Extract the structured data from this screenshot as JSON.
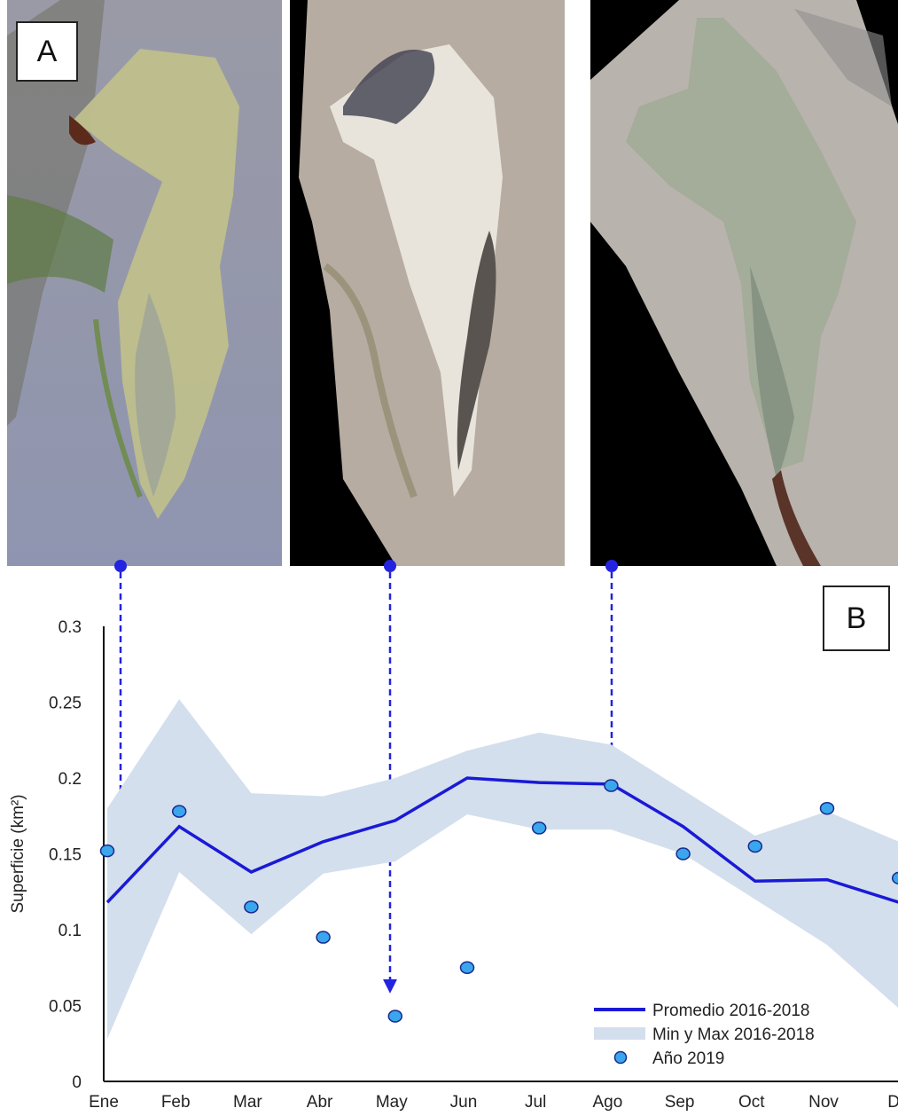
{
  "panels": {
    "a_label": "A",
    "b_label": "B"
  },
  "colors": {
    "mean_line": "#1a1ad6",
    "band_fill": "#d3dfed",
    "point_fill": "#3aa6ee",
    "point_stroke": "#1a2a8a",
    "arrow": "#2323e0"
  },
  "chart_data": {
    "type": "line",
    "ylabel": "Superficie (km²)",
    "ylim": [
      0,
      0.3
    ],
    "yticks": [
      "0",
      "0.05",
      "0.1",
      "0.15",
      "0.2",
      "0.25",
      "0.3"
    ],
    "categories": [
      "Ene",
      "Feb",
      "Mar",
      "Abr",
      "May",
      "Jun",
      "Jul",
      "Ago",
      "Sep",
      "Oct",
      "Nov",
      "Di"
    ],
    "series": [
      {
        "name": "Promedio 2016-2018",
        "kind": "line",
        "values": [
          0.118,
          0.168,
          0.138,
          0.158,
          0.172,
          0.2,
          0.197,
          0.196,
          0.168,
          0.132,
          0.133,
          0.118
        ]
      },
      {
        "name": "Min y Max 2016-2018",
        "kind": "band",
        "min": [
          0.028,
          0.138,
          0.097,
          0.137,
          0.145,
          0.176,
          0.166,
          0.166,
          0.15,
          0.12,
          0.09,
          0.048
        ],
        "max": [
          0.18,
          0.252,
          0.19,
          0.188,
          0.2,
          0.218,
          0.23,
          0.222,
          0.192,
          0.162,
          0.178,
          0.158
        ]
      },
      {
        "name": "Año 2019",
        "kind": "scatter",
        "values": [
          0.152,
          0.178,
          0.115,
          0.095,
          0.043,
          0.075,
          0.167,
          0.195,
          0.15,
          0.155,
          0.18,
          0.134
        ]
      }
    ],
    "annotations": [
      {
        "from_panel": "A1",
        "to_month": "Ene",
        "to_value": 0.165
      },
      {
        "from_panel": "A2",
        "to_month": "May",
        "to_value": 0.058
      },
      {
        "from_panel": "A3",
        "to_month": "Ago",
        "to_value": 0.205
      }
    ],
    "legend": "bottom-right"
  }
}
